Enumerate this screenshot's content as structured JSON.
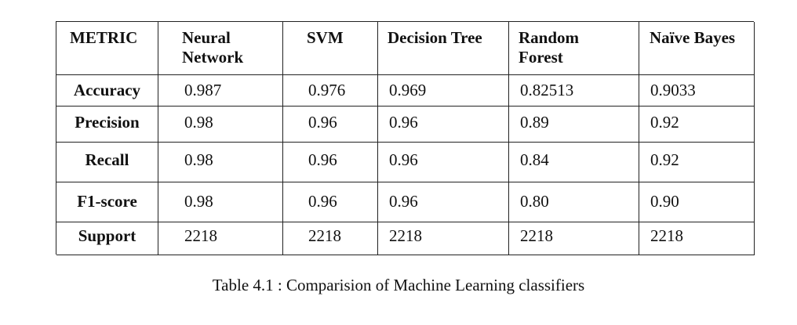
{
  "table": {
    "headers": [
      "METRIC",
      "Neural Network",
      "SVM",
      "Decision Tree",
      "Random Forest",
      "Naïve Bayes"
    ],
    "rows": [
      {
        "metric": "Accuracy",
        "values": [
          "0.987",
          "0.976",
          "0.969",
          "0.82513",
          "0.9033"
        ]
      },
      {
        "metric": "Precision",
        "values": [
          "0.98",
          "0.96",
          "0.96",
          "0.89",
          "0.92"
        ]
      },
      {
        "metric": "Recall",
        "values": [
          "0.98",
          "0.96",
          "0.96",
          "0.84",
          "0.92"
        ]
      },
      {
        "metric": "F1-score",
        "values": [
          "0.98",
          "0.96",
          "0.96",
          "0.80",
          "0.90"
        ]
      },
      {
        "metric": "Support",
        "values": [
          "2218",
          "2218",
          "2218",
          "2218",
          "2218"
        ]
      }
    ]
  },
  "caption": "Table 4.1 : Comparision of Machine Learning classifiers"
}
